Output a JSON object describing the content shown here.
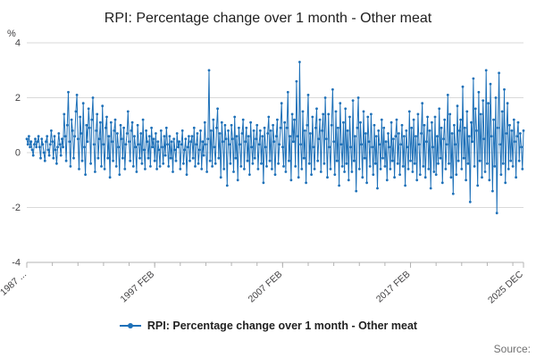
{
  "title": "RPI: Percentage change over 1 month - Other meat",
  "y_axis": {
    "unit": "%",
    "ticks": [
      4,
      2,
      0,
      -2,
      -4
    ],
    "min": -4,
    "max": 4
  },
  "x_axis": {
    "tick_labels": [
      {
        "index": 0,
        "label": "1987 ..."
      },
      {
        "index": 120,
        "label": "1997 FEB"
      },
      {
        "index": 240,
        "label": "2007 FEB"
      },
      {
        "index": 360,
        "label": "2017 FEB"
      },
      {
        "index": 466,
        "label": "2025 DEC"
      }
    ],
    "minor_tick_every": 24
  },
  "legend": {
    "label": "RPI: Percentage change over 1 month - Other meat"
  },
  "source": "Source:",
  "colors": {
    "line": "#1d70b8",
    "grid": "#d9d9d9",
    "axis": "#b3b3b3",
    "tick_text": "#414042"
  },
  "chart_data": {
    "type": "line",
    "title": "RPI: Percentage change over 1 month - Other meat",
    "xlabel": "",
    "ylabel": "%",
    "ylim": [
      -4,
      4
    ],
    "grid": true,
    "legend_position": "bottom",
    "x_start": "1987 FEB",
    "x_end": "2025 DEC",
    "x_frequency": "monthly",
    "series": [
      {
        "name": "RPI: Percentage change over 1 month - Other meat",
        "values": [
          0.5,
          0.3,
          0.6,
          0.2,
          0.4,
          0.1,
          -0.1,
          0.3,
          0.5,
          0.2,
          0.4,
          0.6,
          0.2,
          -0.2,
          0.5,
          0.3,
          0.0,
          -0.3,
          0.4,
          0.6,
          0.1,
          -0.1,
          0.3,
          0.8,
          0.4,
          -0.2,
          0.6,
          0.1,
          -0.4,
          0.2,
          0.7,
          0.3,
          -0.1,
          0.5,
          0.2,
          1.4,
          0.6,
          -0.3,
          1.0,
          2.2,
          0.4,
          -0.5,
          1.2,
          0.8,
          -0.2,
          0.6,
          1.5,
          2.1,
          0.5,
          -0.6,
          1.3,
          0.7,
          -0.3,
          1.8,
          0.2,
          -0.8,
          1.0,
          0.4,
          1.6,
          0.9,
          -0.4,
          1.2,
          2.0,
          0.3,
          -0.7,
          0.8,
          1.4,
          -0.2,
          0.5,
          1.1,
          -0.5,
          1.7,
          0.3,
          -0.6,
          0.9,
          1.3,
          -0.2,
          0.6,
          -0.9,
          1.1,
          0.4,
          -0.3,
          0.8,
          1.2,
          -0.5,
          0.7,
          0.2,
          -0.8,
          1.0,
          0.5,
          -0.2,
          0.9,
          -0.6,
          0.3,
          0.7,
          1.5,
          0.4,
          -0.3,
          0.8,
          1.1,
          -0.5,
          0.6,
          0.2,
          -0.7,
          1.0,
          0.3,
          -0.2,
          0.7,
          -0.4,
          1.2,
          0.1,
          -0.6,
          0.8,
          0.4,
          -0.2,
          0.6,
          -0.5,
          0.9,
          0.2,
          0.5,
          -0.3,
          0.7,
          -0.6,
          0.4,
          0.1,
          -0.5,
          0.8,
          0.2,
          -0.4,
          0.6,
          -0.1,
          0.9,
          0.3,
          -0.5,
          0.6,
          -0.2,
          0.4,
          -0.7,
          0.5,
          0.1,
          -0.3,
          0.7,
          0.2,
          0.4,
          -0.6,
          0.3,
          0.8,
          -0.4,
          0.1,
          0.5,
          -0.8,
          0.2,
          0.6,
          -0.3,
          0.4,
          0.6,
          -0.2,
          0.9,
          -0.5,
          0.3,
          0.7,
          -0.4,
          0.1,
          0.8,
          -0.6,
          0.4,
          -0.1,
          1.1,
          0.3,
          -0.7,
          0.5,
          3.0,
          -0.3,
          0.8,
          -0.5,
          1.2,
          0.2,
          -0.4,
          0.9,
          1.6,
          -0.2,
          0.7,
          -0.9,
          1.1,
          0.4,
          -0.6,
          1.0,
          0.5,
          -1.2,
          0.8,
          0.3,
          -0.4,
          1.0,
          0.5,
          -0.7,
          1.3,
          -0.2,
          0.6,
          -1.0,
          0.9,
          0.3,
          -0.5,
          0.7,
          1.2,
          -0.6,
          0.4,
          0.9,
          -0.3,
          0.6,
          -0.8,
          1.1,
          0.2,
          -0.4,
          0.8,
          -0.2,
          0.5,
          1.0,
          -0.6,
          0.3,
          0.8,
          -0.4,
          0.6,
          -1.1,
          0.9,
          0.2,
          -0.5,
          0.7,
          1.3,
          -0.3,
          0.8,
          -0.6,
          1.0,
          0.4,
          -0.8,
          0.6,
          1.2,
          -0.4,
          0.3,
          0.9,
          1.8,
          0.2,
          -0.5,
          1.1,
          -0.7,
          0.9,
          2.2,
          -0.3,
          0.6,
          -1.0,
          1.4,
          0.4,
          1.2,
          -0.5,
          2.6,
          0.6,
          -0.9,
          3.3,
          0.3,
          -0.6,
          1.5,
          -0.2,
          0.8,
          -1.1,
          1.0,
          2.1,
          -0.4,
          0.7,
          -0.8,
          1.3,
          0.2,
          -0.6,
          0.9,
          1.6,
          -0.3,
          0.5,
          1.2,
          -0.7,
          0.8,
          1.4,
          -0.4,
          2.0,
          0.5,
          -0.9,
          1.4,
          0.2,
          -0.6,
          1.0,
          2.3,
          0.4,
          -0.8,
          1.5,
          -0.3,
          0.9,
          -1.2,
          1.8,
          0.3,
          -0.5,
          1.1,
          -0.7,
          1.6,
          -0.4,
          0.8,
          -1.0,
          1.3,
          0.2,
          -0.7,
          1.9,
          -0.3,
          0.6,
          -1.4,
          0.9,
          2.0,
          -0.6,
          1.1,
          0.3,
          -0.9,
          1.5,
          -0.2,
          0.7,
          -1.1,
          1.3,
          0.4,
          -0.5,
          1.4,
          0.2,
          -0.8,
          1.0,
          -0.4,
          0.6,
          -1.3,
          0.8,
          0.3,
          -0.6,
          1.2,
          -0.2,
          0.9,
          -0.5,
          0.4,
          -1.0,
          0.7,
          0.2,
          -0.6,
          1.1,
          -0.3,
          0.5,
          -0.9,
          0.6,
          1.2,
          -0.4,
          0.7,
          -0.8,
          0.3,
          1.0,
          -0.5,
          0.6,
          -1.2,
          0.8,
          0.2,
          -0.6,
          1.5,
          -0.3,
          0.9,
          -0.7,
          1.2,
          -0.4,
          0.6,
          -1.0,
          1.4,
          0.3,
          -0.8,
          0.7,
          1.8,
          -0.5,
          1.0,
          -0.9,
          0.4,
          1.3,
          -0.6,
          0.8,
          -1.3,
          1.1,
          0.2,
          -0.7,
          1.3,
          -0.8,
          0.6,
          -0.4,
          1.6,
          -0.2,
          0.9,
          -1.1,
          0.5,
          1.2,
          -0.6,
          0.3,
          2.1,
          -0.4,
          1.4,
          -0.9,
          0.7,
          -1.5,
          1.0,
          0.3,
          -0.8,
          1.7,
          -0.3,
          0.8,
          1.2,
          -0.6,
          2.4,
          -0.2,
          0.9,
          -1.0,
          1.5,
          -0.4,
          0.6,
          -1.8,
          1.1,
          0.4,
          2.7,
          -0.5,
          1.6,
          0.8,
          -1.2,
          2.2,
          -0.3,
          1.4,
          -0.9,
          1.9,
          0.5,
          -0.7,
          3.0,
          -0.4,
          1.8,
          -1.0,
          2.5,
          0.6,
          -1.4,
          1.2,
          -0.5,
          2.0,
          -2.2,
          0.9,
          2.9,
          0.3,
          -0.8,
          1.5,
          -0.4,
          2.3,
          -1.1,
          0.7,
          1.8,
          -0.6,
          1.0,
          -0.3,
          0.8,
          -0.5,
          1.2,
          0.4,
          -0.9,
          0.6,
          1.1,
          -0.3,
          0.7,
          0.2,
          -0.6,
          0.8
        ]
      }
    ]
  }
}
